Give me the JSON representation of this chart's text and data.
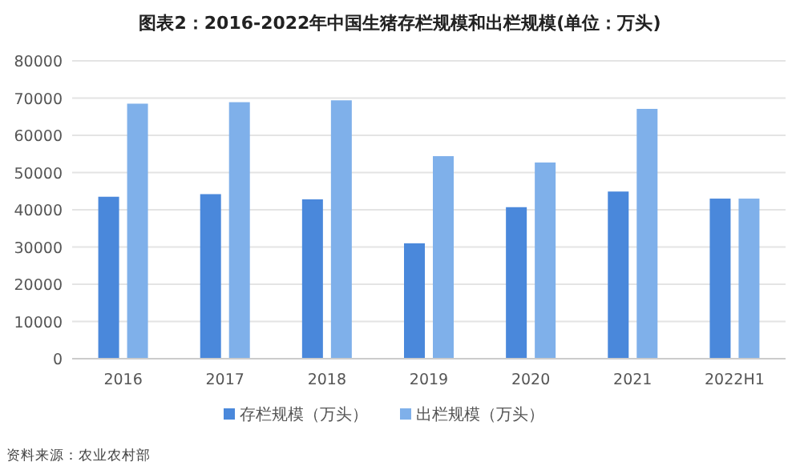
{
  "chart_data": {
    "type": "bar",
    "title": "图表2：2016-2022年中国生猪存栏规模和出栏规模(单位：万头)",
    "categories": [
      "2016",
      "2017",
      "2018",
      "2019",
      "2020",
      "2021",
      "2022H1"
    ],
    "series": [
      {
        "name": "存栏规模（万头）",
        "color": "#4a88db",
        "values": [
          43500,
          44200,
          42800,
          31000,
          40700,
          44900,
          43000
        ]
      },
      {
        "name": "出栏规模（万头）",
        "color": "#7fb0ea",
        "values": [
          68500,
          68900,
          69400,
          54400,
          52700,
          67100,
          43000
        ]
      }
    ],
    "ylim": [
      0,
      80000
    ],
    "yticks": [
      0,
      10000,
      20000,
      30000,
      40000,
      50000,
      60000,
      70000,
      80000
    ],
    "grid": "y",
    "legend": "bottom",
    "annotations": [
      "资料来源：农业农村部"
    ]
  }
}
